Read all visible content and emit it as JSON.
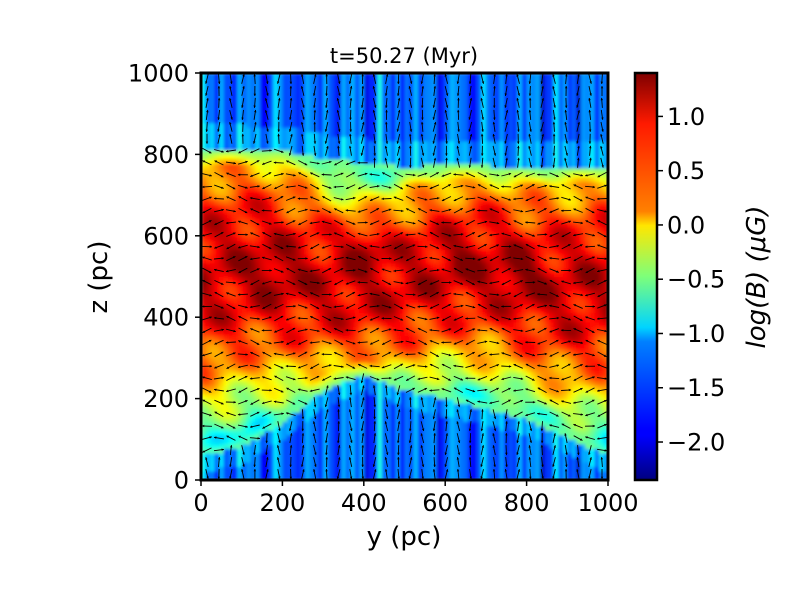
{
  "chart_data": {
    "type": "heatmap",
    "title": "t=50.27 (Myr)",
    "xlabel": "y (pc)",
    "ylabel": "z (pc)",
    "xlim": [
      0,
      1000
    ],
    "ylim": [
      0,
      1000
    ],
    "x_ticks": [
      "0",
      "200",
      "400",
      "600",
      "800",
      "1000"
    ],
    "y_ticks": [
      "0",
      "200",
      "400",
      "600",
      "800",
      "1000"
    ],
    "colorbar": {
      "label": "log(B) (μG)",
      "range": [
        -2.35,
        1.4
      ],
      "ticks": [
        "1.0",
        "0.5",
        "0.0",
        "−0.5",
        "−1.0",
        "−1.5",
        "−2.0"
      ],
      "tick_values": [
        1.0,
        0.5,
        0.0,
        -0.5,
        -1.0,
        -1.5,
        -2.0
      ],
      "colormap": "jet"
    },
    "field_structure": {
      "disk_midplane_z": 500,
      "disk_peak_value": 1.1,
      "halo_value": -1.3,
      "upper_boundary_z_samples": [
        [
          0,
          815
        ],
        [
          200,
          810
        ],
        [
          300,
          790
        ],
        [
          400,
          780
        ],
        [
          500,
          770
        ],
        [
          600,
          775
        ],
        [
          800,
          770
        ],
        [
          1000,
          770
        ]
      ],
      "lower_boundary_z_samples": [
        [
          0,
          60
        ],
        [
          100,
          80
        ],
        [
          200,
          140
        ],
        [
          300,
          220
        ],
        [
          400,
          260
        ],
        [
          500,
          220
        ],
        [
          600,
          200
        ],
        [
          800,
          150
        ],
        [
          1000,
          60
        ]
      ]
    },
    "vectors": "magnetic field direction arrows (black), regular grid",
    "grid": false
  }
}
